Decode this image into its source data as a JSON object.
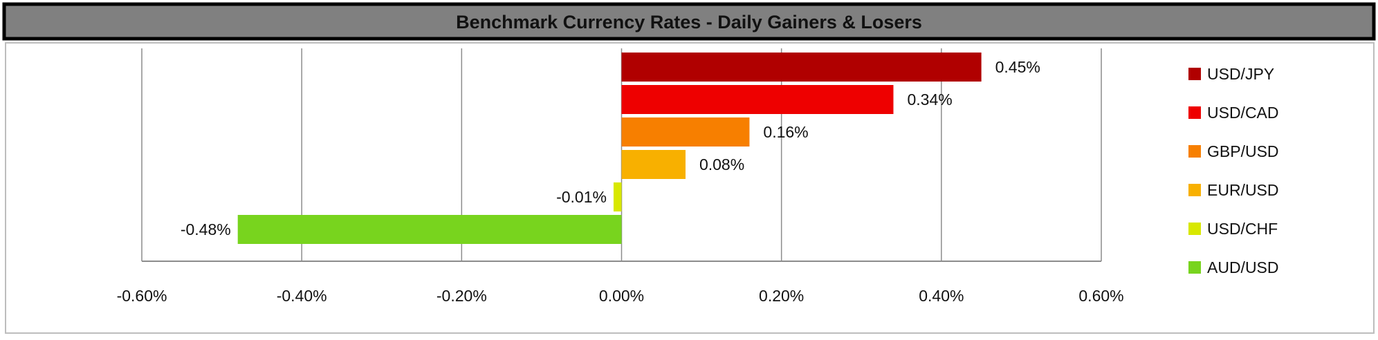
{
  "chart_data": {
    "type": "bar",
    "orientation": "horizontal",
    "title": "Benchmark Currency Rates - Daily Gainers & Losers",
    "categories": [
      "USD/JPY",
      "USD/CAD",
      "GBP/USD",
      "EUR/USD",
      "USD/CHF",
      "AUD/USD"
    ],
    "values": [
      0.45,
      0.34,
      0.16,
      0.08,
      -0.01,
      -0.48
    ],
    "data_labels": [
      "0.45%",
      "0.34%",
      "0.16%",
      "0.08%",
      "-0.01%",
      "-0.48%"
    ],
    "colors": [
      "#b00000",
      "#ee0000",
      "#f77f00",
      "#f8b000",
      "#d8e800",
      "#78d41e"
    ],
    "xlim": [
      -0.6,
      0.6
    ],
    "xticks": [
      -0.6,
      -0.4,
      -0.2,
      0.0,
      0.2,
      0.4,
      0.6
    ],
    "xtick_labels": [
      "-0.60%",
      "-0.40%",
      "-0.20%",
      "0.00%",
      "0.20%",
      "0.40%",
      "0.60%"
    ],
    "unit": "%",
    "grid": "vertical",
    "legend": {
      "position": "right",
      "entries": [
        "USD/JPY",
        "USD/CAD",
        "GBP/USD",
        "EUR/USD",
        "USD/CHF",
        "AUD/USD"
      ]
    },
    "title_bar_color": "#808080"
  }
}
